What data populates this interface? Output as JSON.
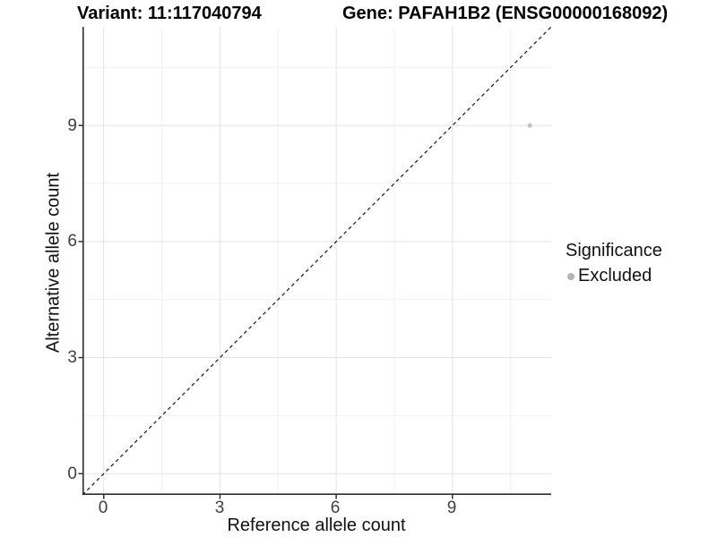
{
  "titles": {
    "variant": "Variant: 11:117040794",
    "gene": "Gene: PAFAH1B2 (ENSG00000168092)"
  },
  "axes": {
    "x_label": "Reference allele count",
    "y_label": "Alternative allele count",
    "x_ticks": [
      "0",
      "3",
      "6",
      "9"
    ],
    "y_ticks": [
      "0",
      "3",
      "6",
      "9"
    ]
  },
  "legend": {
    "title": "Significance",
    "items": [
      {
        "label": "Excluded",
        "color": "#b4b4b4"
      }
    ]
  },
  "colors": {
    "background": "#ffffff",
    "axis_line": "#2f2f2f",
    "major_grid": "#e3e3e3",
    "minor_grid": "#f1f1f1",
    "identity_line": "#141414",
    "point": "#c2c2c2",
    "tick_text": "#404040"
  },
  "chart_data": {
    "type": "scatter",
    "title": "Variant: 11:117040794 | Gene: PAFAH1B2 (ENSG00000168092)",
    "xlabel": "Reference allele count",
    "ylabel": "Alternative allele count",
    "xlim": [
      -0.55,
      11.55
    ],
    "ylim": [
      -0.55,
      11.55
    ],
    "x_major_ticks": [
      0,
      3,
      6,
      9
    ],
    "y_major_ticks": [
      0,
      3,
      6,
      9
    ],
    "x_minor_ticks": [
      1.5,
      4.5,
      7.5,
      10.5
    ],
    "y_minor_ticks": [
      1.5,
      4.5,
      7.5,
      10.5
    ],
    "grid": true,
    "legend_position": "right",
    "identity_line": {
      "shown": true,
      "style": "dashed",
      "equation": "y = x"
    },
    "series": [
      {
        "name": "Excluded",
        "significance": "Excluded",
        "points": [
          {
            "x": 11,
            "y": 9
          }
        ]
      }
    ]
  }
}
